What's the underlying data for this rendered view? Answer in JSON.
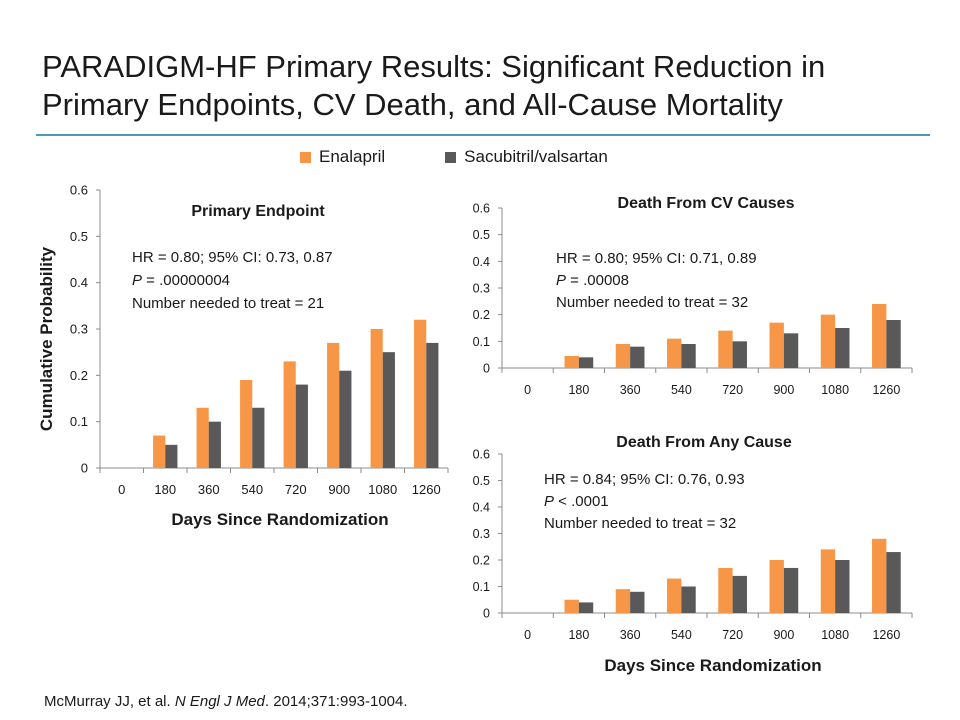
{
  "slide": {
    "title": "PARADIGM-HF Primary Results: Significant Reduction in Primary Endpoints, CV Death, and All-Cause Mortality",
    "citation_author": "McMurray JJ, et al. ",
    "citation_journal": "N Engl J Med",
    "citation_rest": ". 2014;371:993-1004."
  },
  "legend": [
    {
      "label": "Enalapril",
      "color": "#f79646"
    },
    {
      "label": "Sacubitril/valsartan",
      "color": "#595959"
    }
  ],
  "chart_data": [
    {
      "type": "bar",
      "title": "Primary Endpoint",
      "categories": [
        "0",
        "180",
        "360",
        "540",
        "720",
        "900",
        "1080",
        "1260"
      ],
      "series": [
        {
          "name": "Enalapril",
          "color": "#f79646",
          "values": [
            null,
            0.07,
            0.13,
            0.19,
            0.23,
            0.27,
            0.3,
            0.32
          ]
        },
        {
          "name": "Sacubitril/valsartan",
          "color": "#595959",
          "values": [
            null,
            0.05,
            0.1,
            0.13,
            0.18,
            0.21,
            0.25,
            0.27
          ]
        }
      ],
      "ylim": [
        0,
        0.6
      ],
      "yticks": [
        "0",
        "0.1",
        "0.2",
        "0.3",
        "0.4",
        "0.5",
        "0.6"
      ],
      "xlabel": "Days Since Randomization",
      "ylabel": "Cumulative Probability",
      "annotations": [
        {
          "text": "HR = 0.80; 95% CI: 0.73, 0.87"
        },
        {
          "italic": "P",
          "text": " = .00000004"
        },
        {
          "text": "Number needed to treat = 21"
        }
      ]
    },
    {
      "type": "bar",
      "title": "Death From CV Causes",
      "categories": [
        "0",
        "180",
        "360",
        "540",
        "720",
        "900",
        "1080",
        "1260"
      ],
      "series": [
        {
          "name": "Enalapril",
          "color": "#f79646",
          "values": [
            null,
            0.045,
            0.09,
            0.11,
            0.14,
            0.17,
            0.2,
            0.24
          ]
        },
        {
          "name": "Sacubitril/valsartan",
          "color": "#595959",
          "values": [
            null,
            0.04,
            0.08,
            0.09,
            0.1,
            0.13,
            0.15,
            0.18
          ]
        }
      ],
      "ylim": [
        0,
        0.6
      ],
      "yticks": [
        "0",
        "0.1",
        "0.2",
        "0.3",
        "0.4",
        "0.5",
        "0.6"
      ],
      "xlabel": "",
      "ylabel": "",
      "annotations": [
        {
          "text": "HR = 0.80; 95% CI: 0.71, 0.89"
        },
        {
          "italic": "P",
          "text": " = .00008"
        },
        {
          "text": "Number needed to treat = 32"
        }
      ]
    },
    {
      "type": "bar",
      "title": "Death From Any Cause",
      "categories": [
        "0",
        "180",
        "360",
        "540",
        "720",
        "900",
        "1080",
        "1260"
      ],
      "series": [
        {
          "name": "Enalapril",
          "color": "#f79646",
          "values": [
            null,
            0.05,
            0.09,
            0.13,
            0.17,
            0.2,
            0.24,
            0.28
          ]
        },
        {
          "name": "Sacubitril/valsartan",
          "color": "#595959",
          "values": [
            null,
            0.04,
            0.08,
            0.1,
            0.14,
            0.17,
            0.2,
            0.23
          ]
        }
      ],
      "ylim": [
        0,
        0.6
      ],
      "yticks": [
        "0",
        "0.1",
        "0.2",
        "0.3",
        "0.4",
        "0.5",
        "0.6"
      ],
      "xlabel": "Days Since Randomization",
      "ylabel": "",
      "annotations": [
        {
          "text": "HR = 0.84; 95% CI: 0.76, 0.93"
        },
        {
          "italic": "P",
          "text": " < .0001"
        },
        {
          "text": "Number needed to treat = 32"
        }
      ]
    }
  ]
}
